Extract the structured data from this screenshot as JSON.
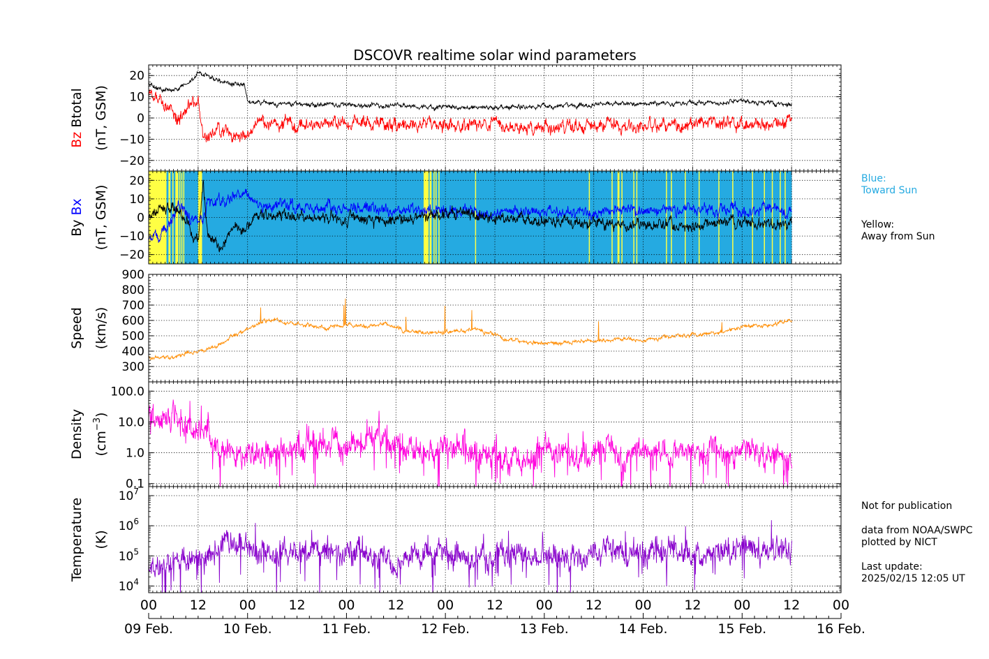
{
  "chart_data": {
    "type": "line",
    "title": "DSCOVR realtime solar wind parameters",
    "x_axis": {
      "range": [
        "2025-02-09T00:00",
        "2025-02-16T00:00"
      ],
      "hour_ticks": [
        "00",
        "12",
        "00",
        "12",
        "00",
        "12",
        "00",
        "12",
        "00",
        "12",
        "00",
        "12",
        "00",
        "12",
        "00"
      ],
      "day_labels": [
        "09 Feb.",
        "10 Feb.",
        "11 Feb.",
        "12 Feb.",
        "13 Feb.",
        "14 Feb.",
        "15 Feb.",
        "16 Feb."
      ],
      "data_end": "2025-02-15T12:05"
    },
    "panels": [
      {
        "id": "btotal-bz",
        "ylabel_parts": [
          "Bz",
          "Btotal"
        ],
        "ylabel_units": "(nT, GSM)",
        "ylim": [
          -25,
          25
        ],
        "ticks": [
          -20,
          -10,
          0,
          10,
          20
        ],
        "tick_labels": [
          "−20",
          "−10",
          "0",
          "10",
          "20"
        ],
        "grid": true,
        "series": [
          {
            "name": "Btotal",
            "color": "#000000",
            "days": [
              0,
              0.1,
              0.2,
              0.3,
              0.45,
              0.5,
              0.6,
              0.75,
              0.85,
              0.97,
              1.0,
              1.2,
              1.5,
              2.0,
              2.5,
              3.0,
              3.5,
              4.0,
              4.5,
              5.0,
              5.5,
              6.0,
              6.5
            ],
            "values": [
              16,
              14,
              13,
              14,
              18,
              22,
              20,
              17,
              16,
              16,
              8,
              7,
              6.5,
              6,
              5.5,
              5,
              5,
              5.5,
              6,
              7,
              7,
              7.5,
              6.5
            ]
          },
          {
            "name": "Bz",
            "color": "#ff0000",
            "days": [
              0,
              0.1,
              0.2,
              0.3,
              0.45,
              0.5,
              0.55,
              0.6,
              0.7,
              0.85,
              0.97,
              1.1,
              1.5,
              2.0,
              2.5,
              3.0,
              3.5,
              4.0,
              4.5,
              5.0,
              5.5,
              6.0,
              6.5
            ],
            "values": [
              10,
              8,
              5,
              0,
              8,
              10,
              -10,
              -8,
              -5,
              -8,
              -10,
              -2,
              -3,
              -2,
              -3,
              -3,
              -4,
              -5,
              -4,
              -4,
              -3,
              -3,
              -2
            ]
          }
        ]
      },
      {
        "id": "by-bx",
        "ylabel_parts": [
          "By",
          "Bx"
        ],
        "ylabel_units": "(nT, GSM)",
        "ylim": [
          -25,
          25
        ],
        "ticks": [
          -20,
          -10,
          0,
          10,
          20
        ],
        "tick_labels": [
          "−20",
          "−10",
          "0",
          "10",
          "20"
        ],
        "grid": true,
        "background_sectors": {
          "toward_color": "#25aae1",
          "away_color": "#ffff44",
          "away_intervals_days": [
            [
              0,
              0.18
            ],
            [
              0.2,
              0.22
            ],
            [
              0.24,
              0.25
            ],
            [
              0.27,
              0.3
            ],
            [
              0.31,
              0.32
            ],
            [
              0.33,
              0.34
            ],
            [
              0.35,
              0.36
            ],
            [
              0.5,
              0.54
            ],
            [
              2.78,
              2.83
            ],
            [
              2.84,
              2.86
            ],
            [
              2.88,
              2.89
            ],
            [
              2.9,
              2.91
            ],
            [
              2.93,
              2.94
            ],
            [
              3.3,
              3.31
            ],
            [
              4.45,
              4.46
            ],
            [
              4.68,
              4.69
            ],
            [
              4.74,
              4.76
            ],
            [
              4.78,
              4.79
            ],
            [
              4.9,
              4.91
            ],
            [
              4.93,
              4.94
            ],
            [
              5.23,
              5.24
            ],
            [
              5.28,
              5.29
            ],
            [
              5.42,
              5.43
            ],
            [
              5.56,
              5.57
            ],
            [
              5.76,
              5.77
            ],
            [
              5.9,
              5.91
            ],
            [
              6.1,
              6.11
            ],
            [
              6.22,
              6.23
            ],
            [
              6.3,
              6.31
            ],
            [
              6.38,
              6.39
            ],
            [
              6.43,
              6.44
            ]
          ]
        },
        "series": [
          {
            "name": "Bx",
            "color": "#0000ff",
            "days": [
              0,
              0.1,
              0.2,
              0.3,
              0.4,
              0.5,
              0.6,
              0.75,
              0.85,
              0.97,
              1.1,
              1.5,
              2.0,
              2.5,
              3.0,
              3.5,
              4.0,
              4.5,
              5.0,
              5.5,
              6.0,
              6.5
            ],
            "values": [
              -10,
              -10,
              -5,
              8,
              0,
              -5,
              8,
              10,
              12,
              12,
              7,
              6,
              5,
              4,
              3.5,
              3,
              3,
              3.5,
              4,
              5,
              4,
              3
            ]
          },
          {
            "name": "By",
            "color": "#000000",
            "days": [
              0,
              0.1,
              0.2,
              0.3,
              0.4,
              0.5,
              0.55,
              0.6,
              0.75,
              0.85,
              0.97,
              1.1,
              1.5,
              2.0,
              2.5,
              3.0,
              3.5,
              4.0,
              4.5,
              5.0,
              5.5,
              6.0,
              6.5
            ],
            "values": [
              0,
              5,
              5,
              5,
              -5,
              -15,
              18,
              -10,
              -15,
              -5,
              -8,
              2,
              0,
              0,
              -2,
              3,
              0,
              -2,
              -3,
              -4,
              -5,
              -3,
              -4
            ]
          }
        ]
      },
      {
        "id": "speed",
        "ylabel_parts": [
          "Speed"
        ],
        "ylabel_units": "(km/s)",
        "ylim": [
          200,
          900
        ],
        "ticks": [
          300,
          400,
          500,
          600,
          700,
          800,
          900
        ],
        "tick_labels": [
          "300",
          "400",
          "500",
          "600",
          "700",
          "800",
          "900"
        ],
        "grid": true,
        "series": [
          {
            "name": "Speed",
            "color": "#ff8c00",
            "days": [
              0,
              0.2,
              0.3,
              0.5,
              0.6,
              0.7,
              0.85,
              1.0,
              1.1,
              1.2,
              1.5,
              1.8,
              2.0,
              2.2,
              2.4,
              2.5,
              2.6,
              2.8,
              3.0,
              3.3,
              3.6,
              3.8,
              4.0,
              4.3,
              4.6,
              4.8,
              5.0,
              5.2,
              5.5,
              5.8,
              6.0,
              6.3,
              6.5
            ],
            "values": [
              360,
              355,
              370,
              400,
              410,
              440,
              500,
              540,
              580,
              600,
              580,
              550,
              570,
              560,
              580,
              560,
              530,
              520,
              520,
              550,
              480,
              460,
              450,
              460,
              470,
              480,
              470,
              490,
              500,
              530,
              560,
              570,
              600
            ]
          }
        ]
      },
      {
        "id": "density",
        "ylabel_parts": [
          "Density"
        ],
        "ylabel_units": "(cm^-3)",
        "scale": "log",
        "ylim": [
          0.08,
          200
        ],
        "ticks": [
          0.1,
          1.0,
          10.0,
          100.0
        ],
        "tick_labels": [
          "0.1",
          "1.0",
          "10.0",
          "100.0"
        ],
        "grid": true,
        "series": [
          {
            "name": "Density",
            "color": "#ff00dd",
            "days": [
              0,
              0.1,
              0.2,
              0.3,
              0.45,
              0.6,
              0.7,
              0.8,
              0.9,
              1.0,
              1.2,
              1.5,
              1.8,
              2.0,
              2.3,
              2.6,
              2.8,
              3.0,
              3.3,
              3.6,
              3.8,
              4.0,
              4.3,
              4.6,
              4.8,
              5.0,
              5.3,
              5.6,
              5.8,
              6.0,
              6.3,
              6.5
            ],
            "values": [
              8,
              12,
              20,
              15,
              8,
              5,
              1.5,
              1.2,
              1.0,
              0.9,
              1.2,
              1.5,
              2,
              1.8,
              2.5,
              1.5,
              1.0,
              1.8,
              1.2,
              0.6,
              0.5,
              1.5,
              0.6,
              1.5,
              0.7,
              1.3,
              0.8,
              1.5,
              1.0,
              1.5,
              0.8,
              0.5
            ]
          }
        ]
      },
      {
        "id": "temperature",
        "ylabel_parts": [
          "Temperature"
        ],
        "ylabel_units": "(K)",
        "scale": "log",
        "ylim": [
          6000,
          20000000
        ],
        "ticks": [
          10000,
          100000,
          1000000,
          10000000
        ],
        "tick_labels": [
          "4",
          "5",
          "6",
          "7"
        ],
        "tick_base": "10",
        "grid": true,
        "series": [
          {
            "name": "Temperature",
            "color": "#8800cc",
            "days": [
              0,
              0.2,
              0.4,
              0.6,
              0.75,
              0.85,
              1.0,
              1.2,
              1.5,
              1.8,
              2.0,
              2.2,
              2.4,
              2.5,
              2.6,
              2.8,
              3.0,
              3.3,
              3.6,
              3.8,
              4.0,
              4.3,
              4.6,
              4.8,
              5.0,
              5.3,
              5.6,
              5.8,
              6.0,
              6.3,
              6.5
            ],
            "values": [
              50000,
              50000,
              80000,
              100000,
              200000,
              300000,
              200000,
              100000,
              150000,
              120000,
              150000,
              150000,
              100000,
              40000,
              100000,
              150000,
              130000,
              100000,
              100000,
              80000,
              120000,
              80000,
              150000,
              100000,
              150000,
              120000,
              100000,
              150000,
              180000,
              150000,
              200000
            ]
          }
        ]
      }
    ],
    "legend_notes": {
      "blue_label": "Blue:",
      "blue_text": "Toward Sun",
      "yellow_label": "Yellow:",
      "yellow_text": "Away from Sun"
    }
  },
  "notes": {
    "not_for_publication": "Not for publication",
    "source_line1": "data from NOAA/SWPC",
    "source_line2": "plotted by NICT",
    "last_update_label": "Last update:",
    "last_update_value": "2025/02/15 12:05 UT"
  },
  "colors": {
    "bz": "#ff0000",
    "bx": "#0000ff",
    "toward_sun_text": "#25aae1"
  }
}
